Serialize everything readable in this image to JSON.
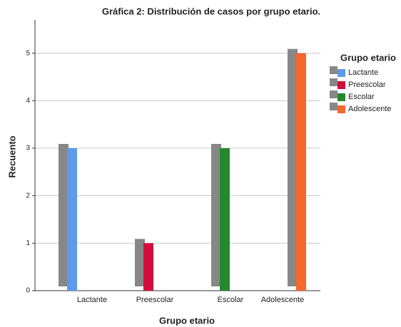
{
  "chart_data": {
    "type": "bar",
    "title": "Gráfica 2: Distribución de casos por grupo etario.",
    "xlabel": "Grupo etario",
    "ylabel": "Recuento",
    "categories": [
      "Lactante",
      "Preescolar",
      "Escolar",
      "Adolescente"
    ],
    "values": [
      3,
      1,
      3,
      5
    ],
    "colors": [
      "#5b9bea",
      "#d10f3d",
      "#24882e",
      "#f5672c"
    ],
    "shadow_color": "#878787",
    "ylim": [
      0,
      5.7
    ],
    "yticks": [
      0,
      1,
      2,
      3,
      4,
      5
    ],
    "grid": true,
    "legend": {
      "title": "Grupo etario",
      "position": "right"
    }
  }
}
